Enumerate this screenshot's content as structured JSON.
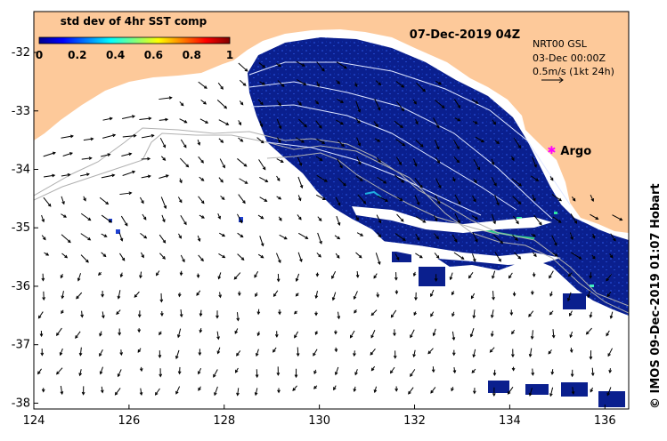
{
  "map": {
    "title": "07-Dec-2019 04Z",
    "colorbar": {
      "label": "std dev of 4hr SST comp",
      "ticks": [
        "0",
        "0.2",
        "0.4",
        "0.6",
        "0.8",
        "1"
      ],
      "range": [
        0,
        1
      ]
    },
    "legend": {
      "line1": "NRT00 GSL",
      "line2": "03-Dec 00:00Z",
      "line3": "0.5m/s (1kt 24h)"
    },
    "marker": {
      "label": "Argo",
      "lon": 134.88,
      "lat": -33.67
    },
    "credit": "© IMOS 09-Dec-2019 01:07 Hobart",
    "x_axis": {
      "ticks": [
        "124",
        "126",
        "128",
        "130",
        "132",
        "134",
        "136"
      ],
      "tick_values": [
        124,
        126,
        128,
        130,
        132,
        134,
        136
      ],
      "range": [
        124,
        136.5
      ]
    },
    "y_axis": {
      "ticks": [
        "-32",
        "-33",
        "-34",
        "-35",
        "-36",
        "-37",
        "-38"
      ],
      "tick_values": [
        -32,
        -33,
        -34,
        -35,
        -36,
        -37,
        -38
      ],
      "range": [
        -38.1,
        -31.3
      ]
    },
    "colors": {
      "land": "#fdc99a",
      "sst_dark": "#0a1f8e",
      "background": "#ffffff"
    }
  }
}
